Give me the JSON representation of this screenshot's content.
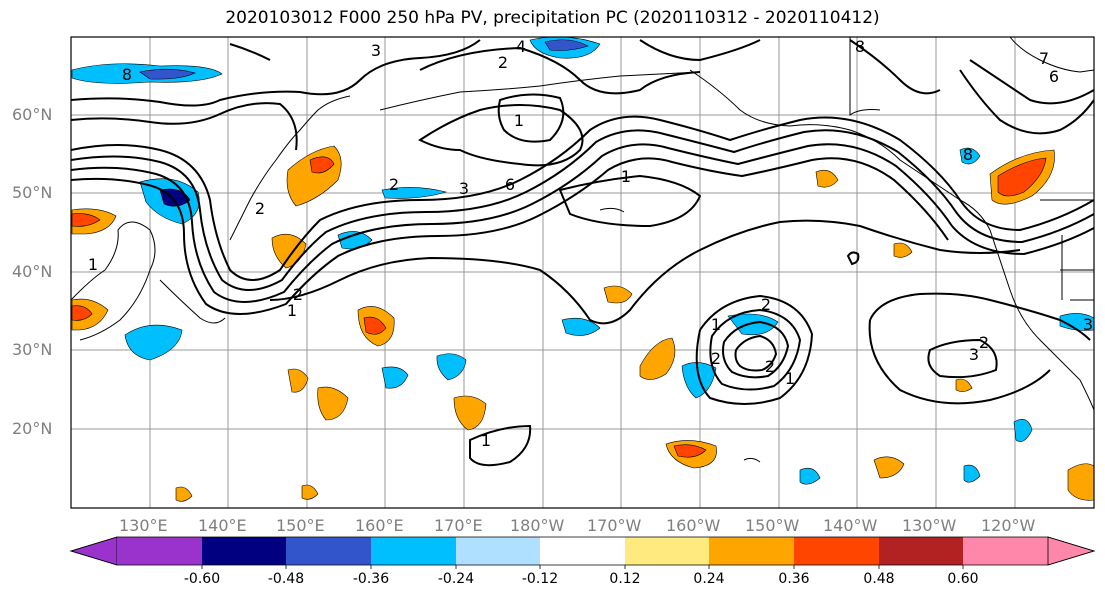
{
  "title": "2020103012 F000 250 hPa PV, precipitation PC (2020110312 - 2020110412)",
  "lat_labels": [
    "60°N",
    "50°N",
    "40°N",
    "30°N",
    "20°N"
  ],
  "lon_labels": [
    "130°E",
    "140°E",
    "150°E",
    "160°E",
    "170°E",
    "180°W",
    "170°W",
    "160°W",
    "150°W",
    "140°W",
    "130°W",
    "120°W"
  ],
  "colorbar": {
    "tick_labels": [
      "-0.60",
      "-0.48",
      "-0.36",
      "-0.24",
      "-0.12",
      "0.12",
      "0.24",
      "0.36",
      "0.48",
      "0.60"
    ],
    "colors": [
      "#9933cc",
      "#000080",
      "#3355cc",
      "#00bfff",
      "#b0e0ff",
      "#ffffff",
      "#ffea80",
      "#ffa500",
      "#ff4500",
      "#b22222",
      "#ff88aa"
    ]
  },
  "contour_labels": [
    "3",
    "4",
    "2",
    "1",
    "8",
    "6",
    "7",
    "1",
    "2",
    "3",
    "6",
    "8",
    "1",
    "2",
    "1",
    "2",
    "2",
    "1",
    "2",
    "3",
    "1",
    "2",
    "3",
    "1",
    "2",
    "8"
  ]
}
